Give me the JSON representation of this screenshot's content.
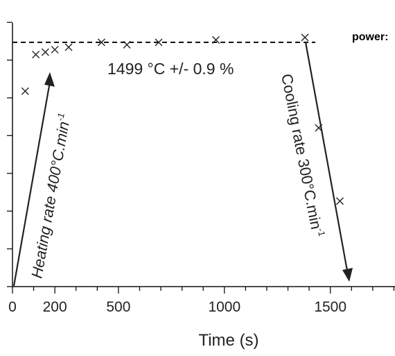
{
  "chart_data": {
    "type": "scatter",
    "xlabel": "Time (s)",
    "xlim": [
      0,
      1800
    ],
    "x_ticks": [
      0,
      200,
      500,
      1000,
      1500
    ],
    "grid": false,
    "series": [
      {
        "values_xy": [
          [
            60,
            0.8
          ],
          [
            110,
            0.95
          ],
          [
            155,
            0.96
          ],
          [
            200,
            0.97
          ],
          [
            265,
            0.98
          ],
          [
            420,
            1.0
          ],
          [
            540,
            0.99
          ],
          [
            690,
            1.0
          ],
          [
            960,
            1.01
          ],
          [
            1380,
            1.02
          ],
          [
            1445,
            0.65
          ],
          [
            1545,
            0.35
          ]
        ]
      }
    ],
    "setpoint_label": "1499 °C +/- 0.9 %",
    "heating_label_main": "Heating rate 400°C.min",
    "heating_label_sup": "-1",
    "cooling_label_main": "Cooling rate 300°C.min",
    "cooling_label_sup": "-1",
    "corner_label": "power:"
  }
}
